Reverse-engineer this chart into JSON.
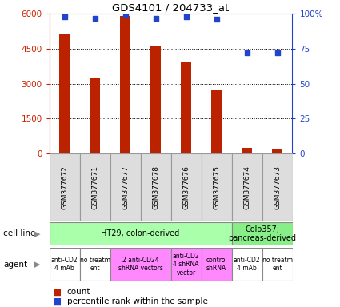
{
  "title": "GDS4101 / 204733_at",
  "samples": [
    "GSM377672",
    "GSM377671",
    "GSM377677",
    "GSM377678",
    "GSM377676",
    "GSM377675",
    "GSM377674",
    "GSM377673"
  ],
  "counts": [
    5100,
    3250,
    5900,
    4650,
    3900,
    2700,
    230,
    200
  ],
  "percentiles": [
    98,
    97,
    99,
    97,
    98,
    96,
    72,
    72
  ],
  "ylim_left": [
    0,
    6000
  ],
  "ylim_right": [
    0,
    100
  ],
  "yticks_left": [
    0,
    1500,
    3000,
    4500,
    6000
  ],
  "yticks_right": [
    0,
    25,
    50,
    75,
    100
  ],
  "bar_color": "#bb2200",
  "scatter_color": "#2244cc",
  "cell_line_groups": [
    {
      "text": "HT29, colon-derived",
      "span": [
        0,
        6
      ],
      "color": "#aaffaa"
    },
    {
      "text": "Colo357,\npancreas-derived",
      "span": [
        6,
        8
      ],
      "color": "#88ee88"
    }
  ],
  "agent_groups": [
    {
      "text": "anti-CD2\n4 mAb",
      "span": [
        0,
        1
      ],
      "color": "#ffffff"
    },
    {
      "text": "no treatm\nent",
      "span": [
        1,
        2
      ],
      "color": "#ffffff"
    },
    {
      "text": "2 anti-CD24\nshRNA vectors",
      "span": [
        2,
        4
      ],
      "color": "#ff88ff"
    },
    {
      "text": "anti-CD2\n4 shRNA\nvector",
      "span": [
        4,
        5
      ],
      "color": "#ff88ff"
    },
    {
      "text": "control\nshRNA",
      "span": [
        5,
        6
      ],
      "color": "#ff88ff"
    },
    {
      "text": "anti-CD2\n4 mAb",
      "span": [
        6,
        7
      ],
      "color": "#ffffff"
    },
    {
      "text": "no treatm\nent",
      "span": [
        7,
        8
      ],
      "color": "#ffffff"
    }
  ],
  "tick_color_left": "#cc2200",
  "tick_color_right": "#2244cc",
  "grid_color": "#888888",
  "sample_box_color": "#dddddd",
  "sample_box_edge": "#999999"
}
